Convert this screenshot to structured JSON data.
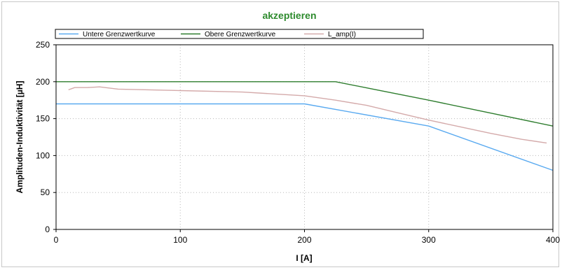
{
  "chart_data": {
    "type": "line",
    "title": "akzeptieren",
    "title_color": "#2e8b2e",
    "xlabel": "I [A]",
    "ylabel": "Amplituden-Induktivität [µH]",
    "xlim": [
      0,
      400
    ],
    "ylim": [
      0,
      250
    ],
    "xticks": [
      0,
      100,
      200,
      300,
      400
    ],
    "yticks": [
      0,
      50,
      100,
      150,
      200,
      250
    ],
    "grid": true,
    "legend_position": "top",
    "series": [
      {
        "name": "Untere Grenzwertkurve",
        "color": "#5aaaf0",
        "x": [
          0,
          200,
          300,
          400
        ],
        "y": [
          170,
          170,
          140,
          80
        ]
      },
      {
        "name": "Obere Grenzwertkurve",
        "color": "#2e7d2e",
        "x": [
          0,
          225,
          300,
          400
        ],
        "y": [
          200,
          200,
          175,
          140
        ]
      },
      {
        "name": "L_amp(I)",
        "color": "#d4aaaa",
        "x": [
          10,
          15,
          25,
          35,
          50,
          100,
          150,
          200,
          225,
          250,
          275,
          300,
          325,
          350,
          375,
          395
        ],
        "y": [
          189,
          192,
          192,
          193,
          190,
          188,
          186,
          181,
          175,
          168,
          158,
          148,
          139,
          130,
          122,
          117
        ]
      }
    ]
  }
}
